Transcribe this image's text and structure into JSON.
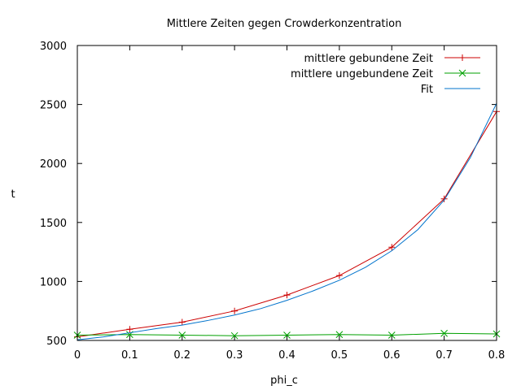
{
  "chart_data": {
    "type": "line",
    "title": "Mittlere Zeiten gegen Crowderkonzentration",
    "xlabel": "phi_c",
    "ylabel": "t",
    "xlim": [
      0,
      0.8
    ],
    "ylim": [
      500,
      3000
    ],
    "xticks": [
      0,
      0.1,
      0.2,
      0.3,
      0.4,
      0.5,
      0.6,
      0.7,
      0.8
    ],
    "xtick_labels": [
      "0",
      "0.1",
      "0.2",
      "0.3",
      "0.4",
      "0.5",
      "0.6",
      "0.7",
      "0.8"
    ],
    "yticks": [
      500,
      1000,
      1500,
      2000,
      2500,
      3000
    ],
    "ytick_labels": [
      "500",
      "1000",
      "1500",
      "2000",
      "2500",
      "3000"
    ],
    "grid": false,
    "legend_position": "top-right",
    "series": [
      {
        "name": "mittlere gebundene Zeit",
        "color": "#cc0000",
        "marker": "plus",
        "x": [
          0,
          0.1,
          0.2,
          0.3,
          0.4,
          0.5,
          0.6,
          0.7,
          0.8
        ],
        "y": [
          530,
          595,
          655,
          750,
          885,
          1050,
          1290,
          1700,
          2440
        ]
      },
      {
        "name": "mittlere ungebundene Zeit",
        "color": "#00a000",
        "marker": "cross",
        "x": [
          0,
          0.1,
          0.2,
          0.3,
          0.4,
          0.5,
          0.6,
          0.7,
          0.8
        ],
        "y": [
          545,
          550,
          545,
          540,
          545,
          550,
          545,
          560,
          555
        ]
      },
      {
        "name": "Fit",
        "color": "#0073cc",
        "marker": "none",
        "x": [
          0,
          0.05,
          0.1,
          0.15,
          0.2,
          0.25,
          0.3,
          0.35,
          0.4,
          0.45,
          0.5,
          0.55,
          0.6,
          0.65,
          0.7,
          0.75,
          0.8
        ],
        "y": [
          505,
          530,
          565,
          600,
          630,
          670,
          715,
          770,
          840,
          920,
          1010,
          1120,
          1260,
          1440,
          1690,
          2050,
          2510
        ]
      }
    ]
  }
}
